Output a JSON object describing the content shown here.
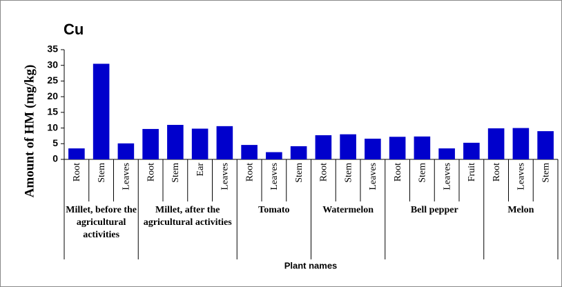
{
  "chart_data": {
    "type": "bar",
    "title": "Cu",
    "ylabel": "Amount of HM (mg/kg)",
    "xlabel": "Plant names",
    "groups": [
      {
        "name": "Millet, before the agricultural activities",
        "categories": [
          "Root",
          "Stem",
          "Leaves"
        ]
      },
      {
        "name": "Millet, after  the agricultural activities",
        "categories": [
          "Root",
          "Stem",
          "Ear",
          "Leaves"
        ]
      },
      {
        "name": "Tomato",
        "categories": [
          "Root",
          "Leaves",
          "Stem"
        ]
      },
      {
        "name": "Watermelon",
        "categories": [
          "Root",
          "Stem",
          "Leaves"
        ]
      },
      {
        "name": "Bell pepper",
        "categories": [
          "Root",
          "Stem",
          "Leaves",
          "Fruit"
        ]
      },
      {
        "name": "Melon",
        "categories": [
          "Root",
          "Leaves",
          "Stem"
        ]
      }
    ],
    "values": [
      3.5,
      30.5,
      5.1,
      9.7,
      11,
      9.8,
      10.6,
      4.6,
      2.3,
      4.2,
      7.7,
      8,
      6.6,
      7.2,
      7.3,
      3.5,
      5.3,
      9.9,
      10,
      9
    ],
    "color": "#0000cc",
    "ylim": [
      0,
      35
    ],
    "yticks": [
      0,
      5,
      10,
      15,
      20,
      25,
      30,
      35
    ],
    "grid": false
  }
}
